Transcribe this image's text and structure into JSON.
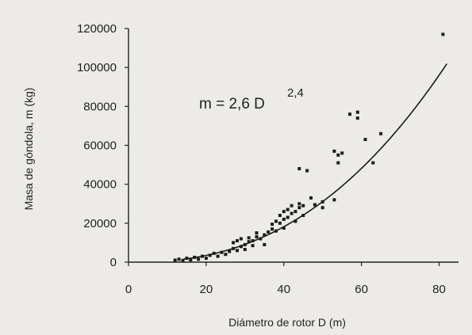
{
  "chart_data": {
    "type": "scatter",
    "xlabel": "Diámetro de rotor D (m)",
    "ylabel": "Masa de góndola, m (kg)",
    "xlim": [
      0,
      85
    ],
    "ylim": [
      0,
      120000
    ],
    "xticks": [
      "0",
      "20",
      "40",
      "60",
      "80"
    ],
    "yticks": [
      "0",
      "20000",
      "40000",
      "60000",
      "80000",
      "100000",
      "120000"
    ],
    "annotation": {
      "base": "m = 2,6 D",
      "exponent": "2,4"
    },
    "fit": {
      "type": "power",
      "coef": 2.6,
      "exponent": 2.4,
      "x_range": [
        14,
        82
      ]
    },
    "grid": false,
    "legend": "none",
    "series": [
      {
        "points": [
          [
            12,
            1000
          ],
          [
            13,
            1500
          ],
          [
            14,
            800
          ],
          [
            15,
            2000
          ],
          [
            16,
            1200
          ],
          [
            17,
            2500
          ],
          [
            18,
            1500
          ],
          [
            19,
            3000
          ],
          [
            20,
            2000
          ],
          [
            21,
            3500
          ],
          [
            22,
            4500
          ],
          [
            23,
            3000
          ],
          [
            24,
            5000
          ],
          [
            25,
            4000
          ],
          [
            26,
            5500
          ],
          [
            27,
            7000
          ],
          [
            27,
            10000
          ],
          [
            28,
            6000
          ],
          [
            28,
            11000
          ],
          [
            29,
            8000
          ],
          [
            29,
            12000
          ],
          [
            30,
            9000
          ],
          [
            30,
            6500
          ],
          [
            31,
            10500
          ],
          [
            31,
            12500
          ],
          [
            32,
            8500
          ],
          [
            32,
            11000
          ],
          [
            33,
            13000
          ],
          [
            33,
            15000
          ],
          [
            34,
            12000
          ],
          [
            35,
            9000
          ],
          [
            35,
            14000
          ],
          [
            36,
            15500
          ],
          [
            37,
            17000
          ],
          [
            37,
            19500
          ],
          [
            38,
            16000
          ],
          [
            38,
            21000
          ],
          [
            39,
            24000
          ],
          [
            39,
            20000
          ],
          [
            40,
            17500
          ],
          [
            40,
            22000
          ],
          [
            40,
            26000
          ],
          [
            41,
            27000
          ],
          [
            41,
            23000
          ],
          [
            42,
            25000
          ],
          [
            42,
            29000
          ],
          [
            43,
            21000
          ],
          [
            43,
            26000
          ],
          [
            44,
            28000
          ],
          [
            44,
            30000
          ],
          [
            45,
            24000
          ],
          [
            45,
            29000
          ],
          [
            44,
            48000
          ],
          [
            46,
            47000
          ],
          [
            47,
            33000
          ],
          [
            48,
            29500
          ],
          [
            50,
            28000
          ],
          [
            50,
            31000
          ],
          [
            53,
            57000
          ],
          [
            53,
            32000
          ],
          [
            54,
            55000
          ],
          [
            54,
            51000
          ],
          [
            55,
            56000
          ],
          [
            57,
            76000
          ],
          [
            59,
            74000
          ],
          [
            59,
            77000
          ],
          [
            61,
            63000
          ],
          [
            63,
            51000
          ],
          [
            65,
            66000
          ],
          [
            81,
            117000
          ]
        ]
      }
    ]
  }
}
